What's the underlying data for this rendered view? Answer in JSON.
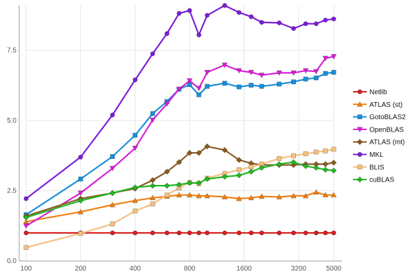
{
  "chart_data": {
    "type": "line",
    "title": "",
    "xlabel": "",
    "ylabel": "",
    "xscale": "log",
    "xlim": [
      100,
      5000
    ],
    "ylim": [
      0,
      9.1
    ],
    "grid": {
      "x": true,
      "y": true
    },
    "legend_position": "right",
    "x_ticks": [
      100,
      200,
      400,
      800,
      1600,
      3200,
      5000
    ],
    "x_tick_labels": [
      "100",
      "200",
      "400",
      "800",
      "1600",
      "3200",
      "5000"
    ],
    "y_ticks": [
      0,
      2.5,
      5,
      7.5
    ],
    "y_tick_labels": [
      "0.0",
      "2.5",
      "5.0",
      "7.5"
    ],
    "x": [
      100,
      200,
      300,
      400,
      500,
      600,
      700,
      800,
      900,
      1000,
      1250,
      1500,
      1750,
      2000,
      2500,
      3000,
      3500,
      4000,
      4500,
      5000
    ],
    "series": [
      {
        "name": "Netlib",
        "color": "#d62020",
        "marker": "circle",
        "values": [
          1.0,
          1.0,
          1.0,
          1.0,
          1.0,
          1.0,
          1.0,
          1.0,
          1.0,
          1.0,
          1.0,
          1.0,
          1.0,
          1.0,
          1.0,
          1.0,
          1.0,
          1.0,
          1.0,
          1.0
        ]
      },
      {
        "name": "ATLAS (st)",
        "color": "#f08010",
        "marker": "triangle-up",
        "values": [
          1.4,
          1.75,
          2.0,
          2.15,
          2.25,
          2.3,
          2.35,
          2.35,
          2.32,
          2.32,
          2.28,
          2.22,
          2.25,
          2.3,
          2.28,
          2.32,
          2.32,
          2.45,
          2.35,
          2.35
        ]
      },
      {
        "name": "GotoBLAS2",
        "color": "#1a8fd8",
        "marker": "square",
        "values": [
          1.65,
          2.92,
          3.72,
          4.48,
          5.25,
          5.68,
          6.12,
          6.28,
          5.92,
          6.22,
          6.33,
          6.2,
          6.26,
          6.22,
          6.3,
          6.38,
          6.48,
          6.52,
          6.68,
          6.72
        ]
      },
      {
        "name": "OpenBLAS",
        "color": "#d81ed8",
        "marker": "triangle-down",
        "values": [
          1.25,
          2.42,
          3.3,
          4.02,
          5.02,
          5.6,
          6.12,
          6.42,
          6.15,
          6.72,
          6.98,
          6.78,
          6.72,
          6.62,
          6.7,
          6.7,
          6.78,
          6.75,
          7.22,
          7.28
        ]
      },
      {
        "name": "ATLAS (mt)",
        "color": "#8b5a1e",
        "marker": "diamond",
        "values": [
          1.6,
          2.22,
          2.42,
          2.58,
          2.88,
          3.18,
          3.52,
          3.85,
          3.85,
          4.08,
          3.95,
          3.6,
          3.48,
          3.42,
          3.42,
          3.42,
          3.45,
          3.45,
          3.45,
          3.5
        ]
      },
      {
        "name": "MKL",
        "color": "#7a1ed8",
        "marker": "circle",
        "values": [
          2.22,
          3.7,
          5.2,
          6.45,
          7.38,
          8.1,
          8.82,
          8.92,
          8.05,
          8.75,
          9.1,
          8.85,
          8.7,
          8.5,
          8.48,
          8.28,
          8.45,
          8.45,
          8.58,
          8.62
        ]
      },
      {
        "name": "BLIS",
        "color": "#f5c080",
        "marker": "square",
        "values": [
          0.48,
          0.98,
          1.32,
          1.78,
          2.03,
          2.35,
          2.6,
          2.8,
          2.75,
          2.95,
          3.12,
          3.25,
          3.35,
          3.45,
          3.65,
          3.75,
          3.82,
          3.88,
          3.92,
          3.98
        ]
      },
      {
        "name": "cuBLAS",
        "color": "#22b822",
        "marker": "diamond",
        "values": [
          1.55,
          2.15,
          2.42,
          2.62,
          2.68,
          2.68,
          2.72,
          2.78,
          2.78,
          2.92,
          3.0,
          3.05,
          3.18,
          3.32,
          3.45,
          3.52,
          3.38,
          3.32,
          3.25,
          3.22
        ]
      }
    ]
  }
}
